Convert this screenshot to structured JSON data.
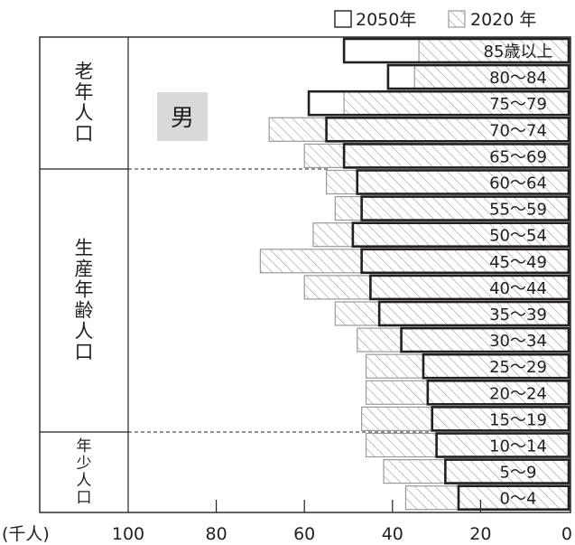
{
  "chart_data": {
    "type": "bar",
    "orientation": "horizontal",
    "gender_label": "男",
    "unit_label": "(千人)",
    "x_ticks": [
      "100",
      "80",
      "60",
      "40",
      "20",
      "0"
    ],
    "xlim": [
      100,
      0
    ],
    "legend": [
      {
        "name": "2050年",
        "style": "hollow-box"
      },
      {
        "name": "2020 年",
        "style": "hatched"
      }
    ],
    "groups": [
      {
        "label": "老年人口",
        "chars": [
          "老",
          "年",
          "人",
          "口"
        ]
      },
      {
        "label": "生産年齢人口",
        "chars": [
          "生",
          "産",
          "年",
          "齢",
          "人",
          "口"
        ]
      },
      {
        "label": "年少人口",
        "chars": [
          "年",
          "少",
          "人",
          "口"
        ]
      }
    ],
    "categories": [
      "85歳以上",
      "80～84",
      "75～79",
      "70～74",
      "65～69",
      "60～64",
      "55～59",
      "50～54",
      "45～49",
      "40～44",
      "35～39",
      "30～34",
      "25～29",
      "20～24",
      "15～19",
      "10～14",
      "5～9",
      "0～4"
    ],
    "series": [
      {
        "name": "2050年",
        "values": [
          51,
          41,
          59,
          55,
          51,
          48,
          47,
          49,
          47,
          45,
          43,
          38,
          33,
          32,
          31,
          30,
          28,
          25
        ]
      },
      {
        "name": "2020 年",
        "values": [
          34,
          35,
          51,
          68,
          60,
          55,
          53,
          58,
          70,
          60,
          53,
          48,
          46,
          46,
          47,
          46,
          42,
          37
        ]
      }
    ],
    "colors": {
      "ink": "#231f20",
      "hatch": "#9a9a9a",
      "label_box": "#d9d9d9"
    }
  }
}
